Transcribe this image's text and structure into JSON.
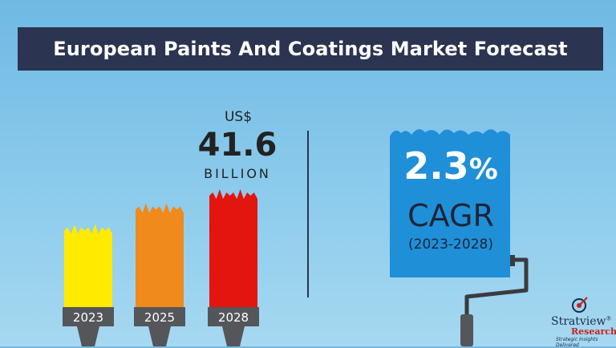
{
  "title": "European Paints And Coatings Market Forecast",
  "highlight": {
    "currency": "US$",
    "value": "41.6",
    "unit": "BILLION"
  },
  "cagr": {
    "value": "2.3",
    "percent_sign": "%",
    "label": "CAGR",
    "period": "(2023-2028)"
  },
  "logo": {
    "name": "Stratview",
    "registered": "®",
    "research": "Research",
    "tagline": "Strategic Insights Delivered"
  },
  "colors": {
    "title_bg": "#2b3450",
    "bar_2023": "#ffea00",
    "bar_2025": "#f08a1c",
    "bar_2028": "#e3160f",
    "roller": "#1f8fd8",
    "brush_handle": "#55565a"
  },
  "chart_data": {
    "type": "bar",
    "categories": [
      "2023",
      "2025",
      "2028"
    ],
    "values": [
      0.7,
      0.88,
      1.0
    ],
    "bar_colors": [
      "#ffea00",
      "#f08a1c",
      "#e3160f"
    ]
  }
}
